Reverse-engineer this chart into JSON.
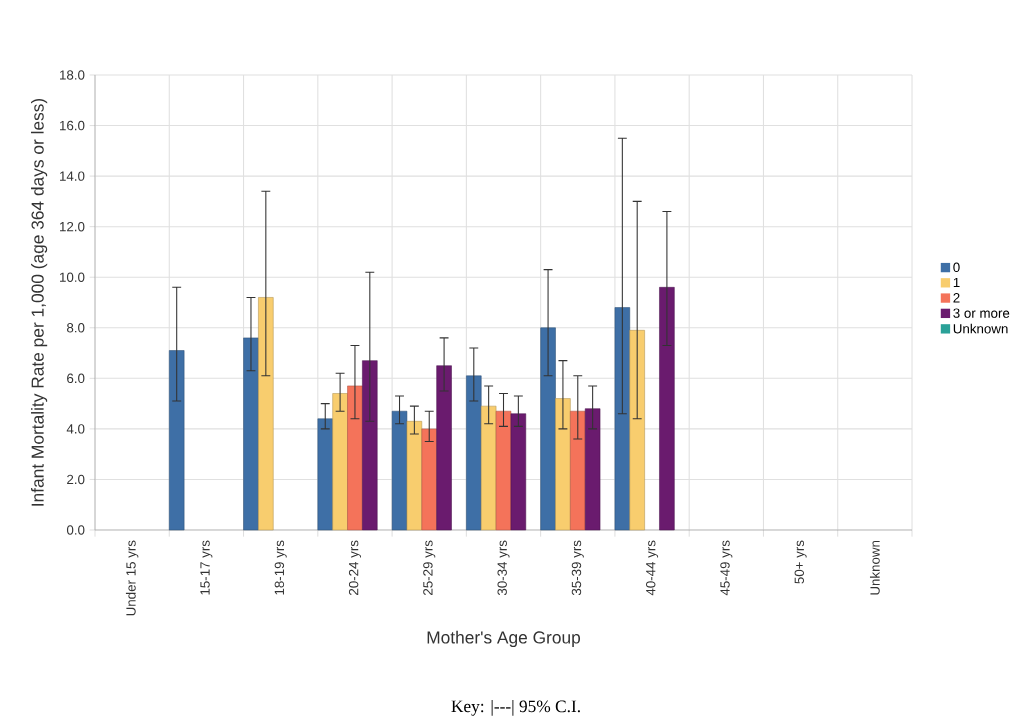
{
  "chart_data": {
    "type": "bar",
    "xlabel": "Mother's Age Group",
    "ylabel": "Infant Mortality Rate per 1,000 (age 364 days or less)",
    "annotations": [
      "Key: |---| 95% C.I."
    ],
    "categories": [
      "Under 15 yrs",
      "15-17 yrs",
      "18-19 yrs",
      "20-24 yrs",
      "25-29 yrs",
      "30-34 yrs",
      "35-39 yrs",
      "40-44 yrs",
      "45-49 yrs",
      "50+ yrs",
      "Unknown"
    ],
    "series": [
      {
        "name": "0",
        "color": "#3e6fa6",
        "values": [
          null,
          7.1,
          7.6,
          4.4,
          4.7,
          6.1,
          8.0,
          8.8,
          null,
          null,
          null
        ],
        "errors": [
          null,
          [
            5.1,
            9.6
          ],
          [
            6.3,
            9.2
          ],
          [
            4.0,
            5.0
          ],
          [
            4.2,
            5.3
          ],
          [
            5.1,
            7.2
          ],
          [
            6.1,
            10.3
          ],
          [
            4.6,
            15.5
          ],
          null,
          null,
          null
        ]
      },
      {
        "name": "1",
        "color": "#f8cd6e",
        "values": [
          null,
          null,
          9.2,
          5.4,
          4.3,
          4.9,
          5.2,
          7.9,
          null,
          null,
          null
        ],
        "errors": [
          null,
          null,
          [
            6.1,
            13.4
          ],
          [
            4.7,
            6.2
          ],
          [
            3.8,
            4.9
          ],
          [
            4.2,
            5.7
          ],
          [
            4.0,
            6.7
          ],
          [
            4.4,
            13.0
          ],
          null,
          null,
          null
        ]
      },
      {
        "name": "2",
        "color": "#f4735a",
        "values": [
          null,
          null,
          null,
          5.7,
          4.0,
          4.7,
          4.7,
          null,
          null,
          null,
          null
        ],
        "errors": [
          null,
          null,
          null,
          [
            4.4,
            7.3
          ],
          [
            3.5,
            4.7
          ],
          [
            4.1,
            5.4
          ],
          [
            3.6,
            6.1
          ],
          null,
          null,
          null,
          null
        ]
      },
      {
        "name": "3 or more",
        "color": "#6a1b6e",
        "values": [
          null,
          null,
          null,
          6.7,
          6.5,
          4.6,
          4.8,
          9.6,
          null,
          null,
          null
        ],
        "errors": [
          null,
          null,
          null,
          [
            4.3,
            10.2
          ],
          [
            5.5,
            7.6
          ],
          [
            4.1,
            5.3
          ],
          [
            4.0,
            5.7
          ],
          [
            7.3,
            12.6
          ],
          null,
          null,
          null
        ]
      },
      {
        "name": "Unknown",
        "color": "#2aa198",
        "values": [
          null,
          null,
          null,
          null,
          null,
          null,
          null,
          null,
          null,
          null,
          null
        ]
      }
    ],
    "ylim": [
      0,
      18
    ],
    "yticks": [
      {
        "value": 0,
        "label": "0.0"
      },
      {
        "value": 2,
        "label": "2.0"
      },
      {
        "value": 4,
        "label": "4.0"
      },
      {
        "value": 6,
        "label": "6.0"
      },
      {
        "value": 8,
        "label": "8.0"
      },
      {
        "value": 10,
        "label": "10.0"
      },
      {
        "value": 12,
        "label": "12.0"
      },
      {
        "value": 14,
        "label": "14.0"
      },
      {
        "value": 16,
        "label": "16.0"
      },
      {
        "value": 18,
        "label": "18.0"
      }
    ],
    "grid": true,
    "legend": "right"
  }
}
